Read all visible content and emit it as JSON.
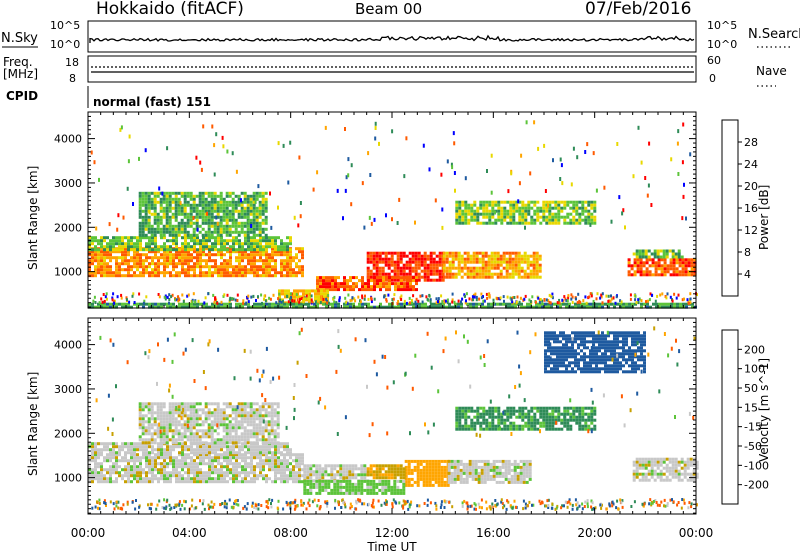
{
  "header": {
    "station": "Hokkaido (fitACF)",
    "beam": "Beam 00",
    "date": "07/Feb/2016"
  },
  "status_panels": {
    "nsky_label": "N.Sky",
    "nsky_ticks": [
      "10^5",
      "10^0"
    ],
    "nsearch_label": "N.Search",
    "freq_label": "Freq.",
    "freq_unit": "[MHz]",
    "freq_ticks": [
      "18",
      "8"
    ],
    "nave_ticks": [
      "60",
      "0"
    ],
    "nave_label": "Nave",
    "cpid_label": "CPID",
    "cpid_value": "normal (fast) 151"
  },
  "colors": {
    "power_scale": [
      "#0000ff",
      "#1e5aa0",
      "#2e8b57",
      "#5cc43a",
      "#e8d800",
      "#ffa500",
      "#ff5a00",
      "#ff0000"
    ],
    "velocity_scale": [
      "#ff0000",
      "#ff5a00",
      "#ffa500",
      "#c8a000",
      "#c8c8c8",
      "#5cc43a",
      "#2e8b57",
      "#1e5aa0",
      "#0000ff"
    ]
  },
  "chart_data": [
    {
      "type": "heatmap",
      "panel": "power",
      "xlabel": "Time UT",
      "ylabel": "Slant Range [km]",
      "x_ticks": [
        "00:00",
        "04:00",
        "08:00",
        "12:00",
        "16:00",
        "20:00",
        "00:00"
      ],
      "xlim_hours": [
        0,
        24
      ],
      "ylim": [
        180,
        4600
      ],
      "y_ticks": [
        1000,
        2000,
        3000,
        4000
      ],
      "colorbar": {
        "label": "Power [dB]",
        "ticks": [
          "4",
          "8",
          "12",
          "16",
          "20",
          "24",
          "28"
        ],
        "range": [
          0,
          30
        ]
      },
      "regions": [
        {
          "t0": 0.0,
          "t1": 8.5,
          "r0": 900,
          "r1": 1550,
          "value": 22
        },
        {
          "t0": 0.0,
          "t1": 8.0,
          "r0": 1500,
          "r1": 1800,
          "value": 13
        },
        {
          "t0": 11.0,
          "t1": 14.0,
          "r0": 800,
          "r1": 1450,
          "value": 27
        },
        {
          "t0": 14.0,
          "t1": 17.8,
          "r0": 900,
          "r1": 1450,
          "value": 20
        },
        {
          "t0": 9.0,
          "t1": 13.0,
          "r0": 600,
          "r1": 900,
          "value": 25
        },
        {
          "t0": 7.5,
          "t1": 9.5,
          "r0": 300,
          "r1": 600,
          "value": 19
        },
        {
          "t0": 21.3,
          "t1": 24.0,
          "r0": 900,
          "r1": 1300,
          "value": 25
        },
        {
          "t0": 21.5,
          "t1": 23.5,
          "r0": 1300,
          "r1": 1500,
          "value": 13
        },
        {
          "t0": 2.0,
          "t1": 7.0,
          "r0": 1800,
          "r1": 2800,
          "value": 12
        },
        {
          "t0": 14.5,
          "t1": 20.0,
          "r0": 2100,
          "r1": 2600,
          "value": 14
        },
        {
          "t0": 0.0,
          "t1": 24.0,
          "r0": 180,
          "r1": 300,
          "value": 11
        }
      ]
    },
    {
      "type": "heatmap",
      "panel": "velocity",
      "xlabel": "Time UT",
      "ylabel": "Slant Range [km]",
      "x_ticks": [
        "00:00",
        "04:00",
        "08:00",
        "12:00",
        "16:00",
        "20:00",
        "00:00"
      ],
      "xlim_hours": [
        0,
        24
      ],
      "ylim": [
        180,
        4600
      ],
      "y_ticks": [
        1000,
        2000,
        3000,
        4000
      ],
      "colorbar": {
        "label": "Velocity [m s^-1]",
        "ticks": [
          "200",
          "100",
          "50",
          "15",
          "-15",
          "-50",
          "-100",
          "-200"
        ],
        "range": [
          -250,
          250
        ]
      },
      "regions": [
        {
          "t0": 0.0,
          "t1": 8.5,
          "r0": 900,
          "r1": 1550,
          "value": 0
        },
        {
          "t0": 0.0,
          "t1": 8.0,
          "r0": 1550,
          "r1": 1800,
          "value": 0
        },
        {
          "t0": 8.5,
          "t1": 11.0,
          "r0": 900,
          "r1": 1300,
          "value": 0
        },
        {
          "t0": 12.5,
          "t1": 14.2,
          "r0": 800,
          "r1": 1400,
          "value": -70
        },
        {
          "t0": 11.0,
          "t1": 12.5,
          "r0": 1000,
          "r1": 1300,
          "value": -40
        },
        {
          "t0": 14.2,
          "t1": 17.5,
          "r0": 900,
          "r1": 1400,
          "value": 0
        },
        {
          "t0": 8.5,
          "t1": 12.5,
          "r0": 650,
          "r1": 950,
          "value": 30
        },
        {
          "t0": 21.5,
          "t1": 24.0,
          "r0": 950,
          "r1": 1450,
          "value": 0
        },
        {
          "t0": 2.0,
          "t1": 7.5,
          "r0": 1800,
          "r1": 2700,
          "value": 0
        },
        {
          "t0": 14.5,
          "t1": 20.0,
          "r0": 2100,
          "r1": 2600,
          "value": 60
        },
        {
          "t0": 18.0,
          "t1": 22.0,
          "r0": 3400,
          "r1": 4300,
          "value": 180
        }
      ]
    }
  ]
}
